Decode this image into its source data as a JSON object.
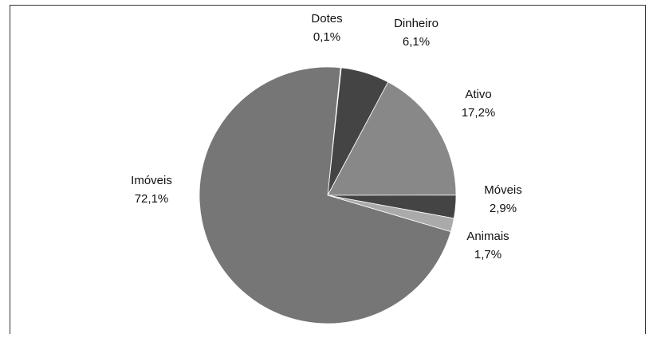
{
  "chart_data": {
    "type": "pie",
    "categories": [
      "Dotes",
      "Dinheiro",
      "Ativo",
      "Móveis",
      "Animais",
      "Imóveis"
    ],
    "values": [
      0.1,
      6.1,
      17.2,
      2.9,
      1.7,
      72.1
    ],
    "value_labels": [
      "0,1%",
      "6,1%",
      "17,2%",
      "2,9%",
      "1,7%",
      "72,1%"
    ],
    "colors": [
      "#5a5a5a",
      "#444444",
      "#888888",
      "#444444",
      "#aaaaaa",
      "#767676"
    ]
  }
}
